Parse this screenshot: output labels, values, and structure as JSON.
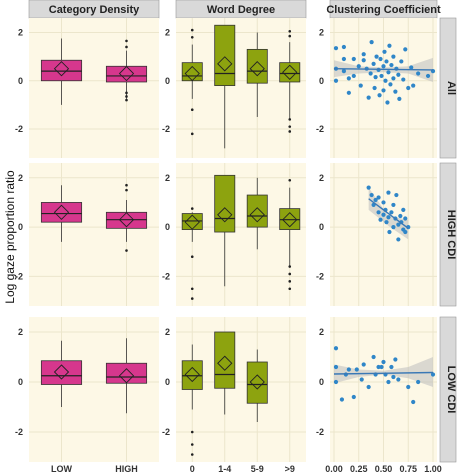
{
  "chart_data": {
    "type": "facet-grid",
    "ylabel": "Log gaze proportion ratio",
    "ylim": [
      -3.2,
      2.6
    ],
    "yticks": [
      -2,
      0,
      2
    ],
    "grid": true,
    "colors": {
      "panel_bg": "#fdf8e6",
      "strip_bg": "#d9d9d9",
      "grid": "#ece6cc",
      "pink": "#d6378d",
      "olive": "#8da30f",
      "blue": "#2f86c8",
      "ribbon": "#bdbdbd"
    },
    "columns": [
      {
        "title": "Category Density",
        "kind": "box",
        "categories": [
          "LOW",
          "HIGH"
        ],
        "color": "#d6378d"
      },
      {
        "title": "Word Degree",
        "kind": "box",
        "categories": [
          "0",
          "1-4",
          "5-9",
          ">9"
        ],
        "color": "#8da30f"
      },
      {
        "title": "Clustering Coefficient",
        "kind": "scatter",
        "xlim": [
          0,
          1
        ],
        "xticks": [
          "0.00",
          "0.25",
          "0.50",
          "0.75",
          "1.00"
        ],
        "color": "#2f86c8"
      }
    ],
    "rows": [
      "All",
      "HIGH CDI",
      "LOW CDI"
    ],
    "boxes": [
      [
        [
          {
            "q1": 0.0,
            "median": 0.4,
            "q3": 0.85,
            "low": -1.0,
            "high": 1.75,
            "mean": 0.5,
            "outliers": []
          },
          {
            "q1": -0.05,
            "median": 0.2,
            "q3": 0.6,
            "low": -0.75,
            "high": 1.25,
            "mean": 0.3,
            "outliers": [
              -0.5,
              -0.65,
              -0.8,
              1.4,
              1.65
            ]
          }
        ],
        [
          {
            "q1": 0.0,
            "median": 0.2,
            "q3": 0.75,
            "low": -0.75,
            "high": 1.5,
            "mean": 0.3,
            "outliers": [
              -1.2,
              -2.2,
              1.8,
              2.1
            ]
          },
          {
            "q1": -0.2,
            "median": 0.3,
            "q3": 2.3,
            "low": -2.8,
            "high": 2.3,
            "mean": 0.7,
            "outliers": []
          },
          {
            "q1": -0.1,
            "median": 0.4,
            "q3": 1.3,
            "low": -1.5,
            "high": 2.0,
            "mean": 0.5,
            "outliers": []
          },
          {
            "q1": -0.05,
            "median": 0.3,
            "q3": 0.75,
            "low": -1.6,
            "high": 1.6,
            "mean": 0.35,
            "outliers": [
              -1.6,
              -1.9,
              -2.1,
              1.85,
              2.05
            ]
          }
        ],
        [
          {
            "low": 0,
            "q1": 0,
            "median": 0,
            "q3": 0,
            "high": 0,
            "mean": 0,
            "outliers": [],
            "hidden": true
          }
        ]
      ],
      [
        [
          {
            "q1": 0.2,
            "median": 0.55,
            "q3": 1.0,
            "low": -0.6,
            "high": 1.7,
            "mean": 0.6,
            "outliers": []
          },
          {
            "q1": -0.05,
            "median": 0.3,
            "q3": 0.6,
            "low": -0.6,
            "high": 1.1,
            "mean": 0.3,
            "outliers": [
              -0.95,
              1.5,
              1.7
            ]
          }
        ],
        [
          {
            "q1": -0.1,
            "median": 0.25,
            "q3": 0.55,
            "low": -0.6,
            "high": 0.6,
            "mean": 0.2,
            "outliers": [
              -1.2,
              -2.5,
              -2.9,
              0.75
            ]
          },
          {
            "q1": -0.2,
            "median": 0.35,
            "q3": 2.1,
            "low": -2.4,
            "high": 2.1,
            "mean": 0.5,
            "outliers": []
          },
          {
            "q1": 0.0,
            "median": 0.45,
            "q3": 1.3,
            "low": -0.9,
            "high": 2.0,
            "mean": 0.5,
            "outliers": []
          },
          {
            "q1": -0.1,
            "median": 0.3,
            "q3": 0.75,
            "low": -1.6,
            "high": 1.6,
            "mean": 0.3,
            "outliers": [
              -1.6,
              -1.9,
              -2.2,
              -2.5,
              1.9
            ]
          }
        ],
        []
      ],
      [
        [
          {
            "q1": -0.1,
            "median": 0.25,
            "q3": 0.85,
            "low": -1.0,
            "high": 1.65,
            "mean": 0.4,
            "outliers": []
          },
          {
            "q1": -0.05,
            "median": 0.2,
            "q3": 0.75,
            "low": -1.25,
            "high": 1.75,
            "mean": 0.25,
            "outliers": []
          }
        ],
        [
          {
            "q1": -0.3,
            "median": 0.25,
            "q3": 0.85,
            "low": -1.1,
            "high": 1.5,
            "mean": 0.3,
            "outliers": [
              -2.0,
              -2.5,
              -2.9
            ]
          },
          {
            "q1": -0.25,
            "median": 0.3,
            "q3": 2.0,
            "low": -1.3,
            "high": 2.0,
            "mean": 0.75,
            "outliers": []
          },
          {
            "q1": -0.85,
            "median": -0.1,
            "q3": 0.8,
            "low": -1.6,
            "high": 1.3,
            "mean": 0.0,
            "outliers": []
          },
          {
            "q1": 0,
            "median": 0,
            "q3": 0,
            "low": 0,
            "high": 0,
            "mean": 0,
            "outliers": [],
            "hidden": true
          }
        ],
        []
      ]
    ],
    "scatter": [
      {
        "points": [
          [
            0.02,
            0.0
          ],
          [
            0.02,
            0.5
          ],
          [
            0.02,
            1.35
          ],
          [
            0.1,
            0.4
          ],
          [
            0.1,
            0.9
          ],
          [
            0.1,
            1.4
          ],
          [
            0.15,
            0.1
          ],
          [
            0.15,
            -0.5
          ],
          [
            0.2,
            0.9
          ],
          [
            0.2,
            0.2
          ],
          [
            0.25,
            0.6
          ],
          [
            0.27,
            -0.2
          ],
          [
            0.3,
            0.85
          ],
          [
            0.3,
            1.1
          ],
          [
            0.33,
            0.5
          ],
          [
            0.35,
            -0.7
          ],
          [
            0.37,
            0.3
          ],
          [
            0.38,
            1.6
          ],
          [
            0.4,
            0.7
          ],
          [
            0.41,
            -0.3
          ],
          [
            0.42,
            0.15
          ],
          [
            0.43,
            1.0
          ],
          [
            0.45,
            0.45
          ],
          [
            0.46,
            -0.6
          ],
          [
            0.47,
            0.9
          ],
          [
            0.48,
            0.2
          ],
          [
            0.5,
            0.6
          ],
          [
            0.5,
            -0.4
          ],
          [
            0.51,
            1.2
          ],
          [
            0.52,
            0.0
          ],
          [
            0.53,
            0.8
          ],
          [
            0.54,
            -0.9
          ],
          [
            0.55,
            0.35
          ],
          [
            0.56,
            1.45
          ],
          [
            0.57,
            -0.15
          ],
          [
            0.58,
            0.65
          ],
          [
            0.6,
            0.1
          ],
          [
            0.6,
            1.0
          ],
          [
            0.62,
            -0.45
          ],
          [
            0.63,
            0.5
          ],
          [
            0.65,
            0.25
          ],
          [
            0.66,
            -0.75
          ],
          [
            0.68,
            0.8
          ],
          [
            0.7,
            0.05
          ],
          [
            0.72,
            1.3
          ],
          [
            0.75,
            -0.3
          ],
          [
            0.78,
            0.55
          ],
          [
            0.8,
            -0.2
          ],
          [
            0.85,
            0.3
          ],
          [
            0.95,
            0.2
          ],
          [
            1.0,
            0.4
          ]
        ],
        "line": {
          "x": [
            0,
            1
          ],
          "y": [
            0.5,
            0.45
          ]
        },
        "ribbon_top": [
          0.85,
          0.6,
          0.55,
          0.6,
          0.95
        ],
        "ribbon_bottom": [
          0.15,
          0.3,
          0.35,
          0.3,
          -0.05
        ]
      },
      {
        "points": [
          [
            0.35,
            1.6
          ],
          [
            0.38,
            1.3
          ],
          [
            0.4,
            0.9
          ],
          [
            0.42,
            1.1
          ],
          [
            0.45,
            0.6
          ],
          [
            0.45,
            1.2
          ],
          [
            0.47,
            0.3
          ],
          [
            0.5,
            1.0
          ],
          [
            0.5,
            0.5
          ],
          [
            0.52,
            0.7
          ],
          [
            0.53,
            0.2
          ],
          [
            0.55,
            1.4
          ],
          [
            0.55,
            0.4
          ],
          [
            0.56,
            -0.2
          ],
          [
            0.58,
            0.6
          ],
          [
            0.6,
            0.9
          ],
          [
            0.6,
            0.0
          ],
          [
            0.62,
            0.35
          ],
          [
            0.63,
            1.3
          ],
          [
            0.65,
            0.1
          ],
          [
            0.65,
            -0.5
          ],
          [
            0.67,
            0.45
          ],
          [
            0.68,
            0.2
          ],
          [
            0.7,
            -0.1
          ],
          [
            0.7,
            0.7
          ],
          [
            0.72,
            -0.2
          ],
          [
            0.72,
            0.35
          ],
          [
            0.75,
            0.0
          ]
        ],
        "line": {
          "x": [
            0.35,
            0.75
          ],
          "y": [
            1.15,
            -0.05
          ]
        },
        "ribbon_top": [
          1.6,
          0.45,
          0.3
        ],
        "ribbon_bottom": [
          0.7,
          0.05,
          -0.5
        ]
      },
      {
        "points": [
          [
            0.02,
            0.0
          ],
          [
            0.02,
            0.6
          ],
          [
            0.02,
            1.35
          ],
          [
            0.08,
            -0.7
          ],
          [
            0.12,
            0.3
          ],
          [
            0.15,
            0.5
          ],
          [
            0.2,
            -0.6
          ],
          [
            0.23,
            0.5
          ],
          [
            0.28,
            0.1
          ],
          [
            0.3,
            0.7
          ],
          [
            0.35,
            -0.2
          ],
          [
            0.4,
            1.0
          ],
          [
            0.42,
            0.3
          ],
          [
            0.45,
            0.6
          ],
          [
            0.48,
            0.6
          ],
          [
            0.5,
            0.8
          ],
          [
            0.52,
            0.3
          ],
          [
            0.55,
            0.0
          ],
          [
            0.58,
            0.6
          ],
          [
            0.6,
            0.2
          ],
          [
            0.62,
            0.9
          ],
          [
            0.65,
            0.1
          ],
          [
            0.75,
            -0.2
          ],
          [
            0.8,
            -0.8
          ],
          [
            0.85,
            0.0
          ],
          [
            1.0,
            0.3
          ]
        ],
        "line": {
          "x": [
            0,
            1
          ],
          "y": [
            0.32,
            0.38
          ]
        },
        "ribbon_top": [
          0.7,
          0.5,
          0.45,
          0.6,
          1.0
        ],
        "ribbon_bottom": [
          -0.05,
          0.2,
          0.3,
          0.15,
          -0.2
        ]
      }
    ]
  }
}
